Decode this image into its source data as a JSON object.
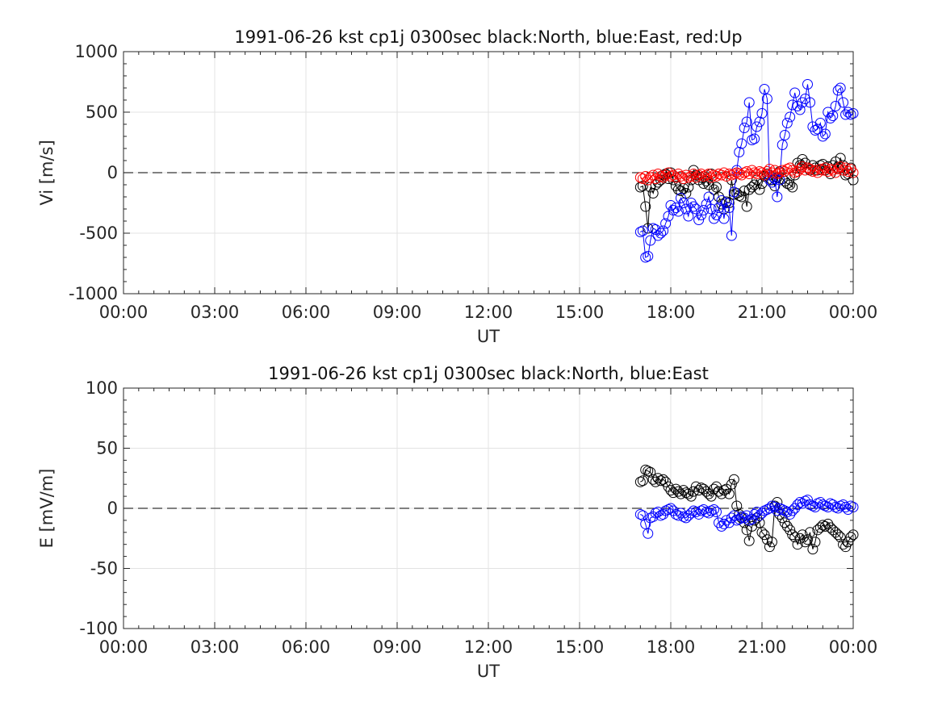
{
  "chart_data": [
    {
      "type": "scatter",
      "title": "1991-06-26 kst cp1j 0300sec black:North, blue:East, red:Up",
      "xlabel": "UT",
      "ylabel": "Vi [m/s]",
      "xlim_hours": [
        0,
        24
      ],
      "ylim": [
        -1000,
        1000
      ],
      "x_tick_labels": [
        "00:00",
        "03:00",
        "06:00",
        "09:00",
        "12:00",
        "15:00",
        "18:00",
        "21:00",
        "00:00"
      ],
      "y_ticks": [
        -1000,
        -500,
        0,
        500,
        1000
      ],
      "y_tick_labels": [
        "-1000",
        "-500",
        "0",
        "500",
        "1000"
      ],
      "grid": true,
      "zero_line": "dashed",
      "marker": "open-circle",
      "series": [
        {
          "name": "North",
          "color": "#000000",
          "x": [
            17.0,
            17.08,
            17.17,
            17.25,
            17.33,
            17.42,
            17.5,
            17.58,
            17.67,
            17.75,
            17.83,
            17.92,
            18.0,
            18.08,
            18.17,
            18.25,
            18.33,
            18.42,
            18.5,
            18.58,
            18.67,
            18.75,
            18.83,
            18.92,
            19.0,
            19.08,
            19.17,
            19.25,
            19.33,
            19.42,
            19.5,
            19.58,
            19.67,
            19.75,
            19.83,
            19.92,
            20.0,
            20.08,
            20.17,
            20.25,
            20.33,
            20.42,
            20.5,
            20.58,
            20.67,
            20.75,
            20.83,
            20.92,
            21.0,
            21.08,
            21.17,
            21.25,
            21.33,
            21.42,
            21.5,
            21.58,
            21.67,
            21.75,
            21.83,
            21.92,
            22.0,
            22.08,
            22.17,
            22.25,
            22.33,
            22.42,
            22.5,
            22.58,
            22.67,
            22.75,
            22.83,
            22.92,
            23.0,
            23.08,
            23.17,
            23.25,
            23.33,
            23.42,
            23.5,
            23.58,
            23.67,
            23.75,
            23.83,
            23.92,
            24.0
          ],
          "values": [
            -120,
            -110,
            -280,
            -460,
            -120,
            -170,
            -100,
            -80,
            -60,
            -20,
            -10,
            -50,
            0,
            -60,
            -110,
            -140,
            -150,
            -130,
            -170,
            -120,
            -60,
            20,
            -20,
            -60,
            -40,
            -90,
            -70,
            -100,
            -10,
            -140,
            -120,
            -200,
            -260,
            -300,
            -240,
            -250,
            -60,
            -180,
            -170,
            -190,
            -200,
            -150,
            -280,
            -140,
            -120,
            -100,
            -60,
            -140,
            -90,
            -30,
            -10,
            -20,
            -60,
            -110,
            -40,
            10,
            -50,
            -70,
            -90,
            -100,
            -120,
            -20,
            80,
            60,
            110,
            80,
            40,
            20,
            60,
            40,
            20,
            60,
            70,
            20,
            50,
            -10,
            60,
            90,
            40,
            120,
            60,
            -20,
            -10,
            40,
            -60
          ]
        },
        {
          "name": "East",
          "color": "#0000ff",
          "x": [
            17.0,
            17.08,
            17.17,
            17.25,
            17.33,
            17.42,
            17.5,
            17.58,
            17.67,
            17.75,
            17.83,
            17.92,
            18.0,
            18.08,
            18.17,
            18.25,
            18.33,
            18.42,
            18.5,
            18.58,
            18.67,
            18.75,
            18.83,
            18.92,
            19.0,
            19.08,
            19.17,
            19.25,
            19.33,
            19.42,
            19.5,
            19.58,
            19.67,
            19.75,
            19.83,
            19.92,
            20.0,
            20.08,
            20.17,
            20.25,
            20.33,
            20.42,
            20.5,
            20.58,
            20.67,
            20.75,
            20.83,
            20.92,
            21.0,
            21.08,
            21.17,
            21.25,
            21.33,
            21.42,
            21.5,
            21.58,
            21.67,
            21.75,
            21.83,
            21.92,
            22.0,
            22.08,
            22.17,
            22.25,
            22.33,
            22.42,
            22.5,
            22.58,
            22.67,
            22.75,
            22.83,
            22.92,
            23.0,
            23.08,
            23.17,
            23.25,
            23.33,
            23.42,
            23.5,
            23.58,
            23.67,
            23.75,
            23.83,
            23.92,
            24.0
          ],
          "values": [
            -490,
            -480,
            -700,
            -690,
            -560,
            -460,
            -470,
            -520,
            -500,
            -480,
            -420,
            -360,
            -270,
            -310,
            -290,
            -320,
            -210,
            -250,
            -300,
            -360,
            -250,
            -280,
            -300,
            -390,
            -350,
            -310,
            -260,
            -200,
            -300,
            -380,
            -350,
            -290,
            -230,
            -380,
            -250,
            -290,
            -520,
            -160,
            20,
            170,
            240,
            370,
            420,
            580,
            270,
            280,
            380,
            420,
            490,
            690,
            610,
            -60,
            -80,
            -50,
            -200,
            -60,
            230,
            310,
            410,
            460,
            560,
            660,
            550,
            520,
            580,
            610,
            730,
            580,
            380,
            350,
            360,
            410,
            300,
            320,
            500,
            450,
            470,
            550,
            680,
            700,
            580,
            480,
            500,
            480,
            490
          ]
        },
        {
          "name": "Up",
          "color": "#ff0000",
          "x": [
            17.0,
            17.08,
            17.17,
            17.25,
            17.33,
            17.42,
            17.5,
            17.58,
            17.67,
            17.75,
            17.83,
            17.92,
            18.0,
            18.08,
            18.17,
            18.25,
            18.33,
            18.42,
            18.5,
            18.58,
            18.67,
            18.75,
            18.83,
            18.92,
            19.0,
            19.08,
            19.17,
            19.25,
            19.33,
            19.42,
            19.5,
            19.58,
            19.67,
            19.75,
            19.83,
            19.92,
            20.0,
            20.08,
            20.17,
            20.25,
            20.33,
            20.42,
            20.5,
            20.58,
            20.67,
            20.75,
            20.83,
            20.92,
            21.0,
            21.08,
            21.17,
            21.25,
            21.33,
            21.42,
            21.5,
            21.58,
            21.67,
            21.75,
            21.83,
            21.92,
            22.0,
            22.08,
            22.17,
            22.25,
            22.33,
            22.42,
            22.5,
            22.58,
            22.67,
            22.75,
            22.83,
            22.92,
            23.0,
            23.08,
            23.17,
            23.25,
            23.33,
            23.42,
            23.5,
            23.58,
            23.67,
            23.75,
            23.83,
            23.92,
            24.0
          ],
          "values": [
            -40,
            -50,
            -30,
            -60,
            -40,
            -20,
            -50,
            -10,
            -30,
            -40,
            -20,
            0,
            -30,
            -20,
            -40,
            -10,
            -30,
            -50,
            -20,
            -40,
            -30,
            -10,
            -40,
            -20,
            -10,
            -30,
            -20,
            -10,
            -40,
            -20,
            -30,
            -10,
            -20,
            0,
            -30,
            -10,
            -20,
            -10,
            0,
            -10,
            -20,
            0,
            10,
            -10,
            20,
            0,
            -10,
            10,
            0,
            -20,
            10,
            30,
            0,
            20,
            -10,
            0,
            20,
            10,
            30,
            40,
            20,
            0,
            10,
            30,
            50,
            20,
            40,
            30,
            10,
            20,
            0,
            30,
            20,
            40,
            10,
            30,
            20,
            0,
            30,
            50,
            20,
            40,
            10,
            30,
            0
          ]
        }
      ]
    },
    {
      "type": "scatter",
      "title": "1991-06-26 kst cp1j 0300sec black:North, blue:East",
      "xlabel": "UT",
      "ylabel": "E [mV/m]",
      "xlim_hours": [
        0,
        24
      ],
      "ylim": [
        -100,
        100
      ],
      "x_tick_labels": [
        "00:00",
        "03:00",
        "06:00",
        "09:00",
        "12:00",
        "15:00",
        "18:00",
        "21:00",
        "00:00"
      ],
      "y_ticks": [
        -100,
        -50,
        0,
        50,
        100
      ],
      "y_tick_labels": [
        "-100",
        "-50",
        "0",
        "50",
        "100"
      ],
      "grid": true,
      "zero_line": "dashed",
      "marker": "open-circle",
      "series": [
        {
          "name": "North",
          "color": "#000000",
          "x": [
            17.0,
            17.08,
            17.17,
            17.25,
            17.33,
            17.42,
            17.5,
            17.58,
            17.67,
            17.75,
            17.83,
            17.92,
            18.0,
            18.08,
            18.17,
            18.25,
            18.33,
            18.42,
            18.5,
            18.58,
            18.67,
            18.75,
            18.83,
            18.92,
            19.0,
            19.08,
            19.17,
            19.25,
            19.33,
            19.42,
            19.5,
            19.58,
            19.67,
            19.75,
            19.83,
            19.92,
            20.0,
            20.08,
            20.17,
            20.25,
            20.33,
            20.42,
            20.5,
            20.58,
            20.67,
            20.75,
            20.83,
            20.92,
            21.0,
            21.08,
            21.17,
            21.25,
            21.33,
            21.42,
            21.5,
            21.58,
            21.67,
            21.75,
            21.83,
            21.92,
            22.0,
            22.08,
            22.17,
            22.25,
            22.33,
            22.42,
            22.5,
            22.58,
            22.67,
            22.75,
            22.83,
            22.92,
            23.0,
            23.08,
            23.17,
            23.25,
            23.33,
            23.42,
            23.5,
            23.58,
            23.67,
            23.75,
            23.83,
            23.92,
            24.0
          ],
          "values": [
            22,
            23,
            32,
            31,
            30,
            24,
            22,
            25,
            23,
            24,
            22,
            18,
            15,
            13,
            16,
            14,
            12,
            15,
            13,
            12,
            10,
            14,
            18,
            15,
            17,
            16,
            14,
            12,
            10,
            16,
            18,
            14,
            12,
            15,
            16,
            12,
            20,
            24,
            2,
            -5,
            -8,
            -12,
            -18,
            -27,
            -15,
            -10,
            -8,
            -12,
            -20,
            -22,
            -26,
            -32,
            -28,
            2,
            5,
            -5,
            -8,
            -12,
            -15,
            -18,
            -22,
            -24,
            -30,
            -25,
            -22,
            -28,
            -26,
            -20,
            -34,
            -28,
            -18,
            -16,
            -14,
            -15,
            -13,
            -16,
            -18,
            -20,
            -22,
            -24,
            -30,
            -32,
            -28,
            -24,
            -22
          ]
        },
        {
          "name": "East",
          "color": "#0000ff",
          "x": [
            17.0,
            17.08,
            17.17,
            17.25,
            17.33,
            17.42,
            17.5,
            17.58,
            17.67,
            17.75,
            17.83,
            17.92,
            18.0,
            18.08,
            18.17,
            18.25,
            18.33,
            18.42,
            18.5,
            18.58,
            18.67,
            18.75,
            18.83,
            18.92,
            19.0,
            19.08,
            19.17,
            19.25,
            19.33,
            19.42,
            19.5,
            19.58,
            19.67,
            19.75,
            19.83,
            19.92,
            20.0,
            20.08,
            20.17,
            20.25,
            20.33,
            20.42,
            20.5,
            20.58,
            20.67,
            20.75,
            20.83,
            20.92,
            21.0,
            21.08,
            21.17,
            21.25,
            21.33,
            21.42,
            21.5,
            21.58,
            21.67,
            21.75,
            21.83,
            21.92,
            22.0,
            22.08,
            22.17,
            22.25,
            22.33,
            22.42,
            22.5,
            22.58,
            22.67,
            22.75,
            22.83,
            22.92,
            23.0,
            23.08,
            23.17,
            23.25,
            23.33,
            23.42,
            23.5,
            23.58,
            23.67,
            23.75,
            23.83,
            23.92,
            24.0
          ],
          "values": [
            -5,
            -6,
            -13,
            -21,
            -8,
            -7,
            -4,
            -3,
            -6,
            -5,
            -2,
            -1,
            0,
            -2,
            -5,
            -6,
            -4,
            -7,
            -8,
            -6,
            -4,
            -2,
            -3,
            -5,
            -2,
            -1,
            -3,
            -4,
            -2,
            -1,
            -3,
            -12,
            -15,
            -13,
            -10,
            -12,
            -8,
            -6,
            -10,
            -9,
            -7,
            -8,
            -6,
            -10,
            -9,
            -5,
            -3,
            -6,
            -4,
            -2,
            -1,
            0,
            2,
            1,
            -2,
            0,
            -1,
            -2,
            -3,
            -5,
            -2,
            0,
            3,
            5,
            4,
            6,
            7,
            3,
            2,
            1,
            4,
            5,
            3,
            2,
            1,
            4,
            3,
            1,
            0,
            2,
            3,
            1,
            -1,
            2,
            1
          ]
        }
      ]
    }
  ]
}
